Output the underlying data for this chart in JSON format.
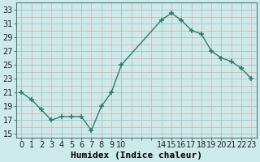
{
  "x": [
    0,
    1,
    2,
    3,
    4,
    5,
    6,
    7,
    8,
    9,
    10,
    14,
    15,
    16,
    17,
    18,
    19,
    20,
    21,
    22,
    23
  ],
  "y": [
    21,
    20,
    18.5,
    17,
    17.5,
    17.5,
    17.5,
    15.5,
    19,
    21,
    25,
    31.5,
    32.5,
    31.5,
    30,
    29.5,
    27,
    26,
    25.5,
    24.5,
    23
  ],
  "line_color": "#2e7d6e",
  "marker": "+",
  "marker_size": 5,
  "bg_color": "#cceaea",
  "grid_color_major": "#aacaca",
  "grid_color_minor": "#ddaaaa",
  "xlabel": "Humidex (Indice chaleur)",
  "xlabel_fontsize": 8,
  "ylabel_ticks": [
    15,
    17,
    19,
    21,
    23,
    25,
    27,
    29,
    31,
    33
  ],
  "xtick_labels": [
    "0",
    "1",
    "2",
    "3",
    "4",
    "5",
    "6",
    "7",
    "8",
    "9",
    "10",
    "",
    "",
    "",
    "14",
    "15",
    "16",
    "17",
    "18",
    "19",
    "20",
    "21",
    "22",
    "23"
  ],
  "xlim": [
    -0.5,
    23.5
  ],
  "ylim": [
    14.5,
    34.0
  ],
  "tick_fontsize": 7,
  "line_width": 1.0,
  "title": ""
}
